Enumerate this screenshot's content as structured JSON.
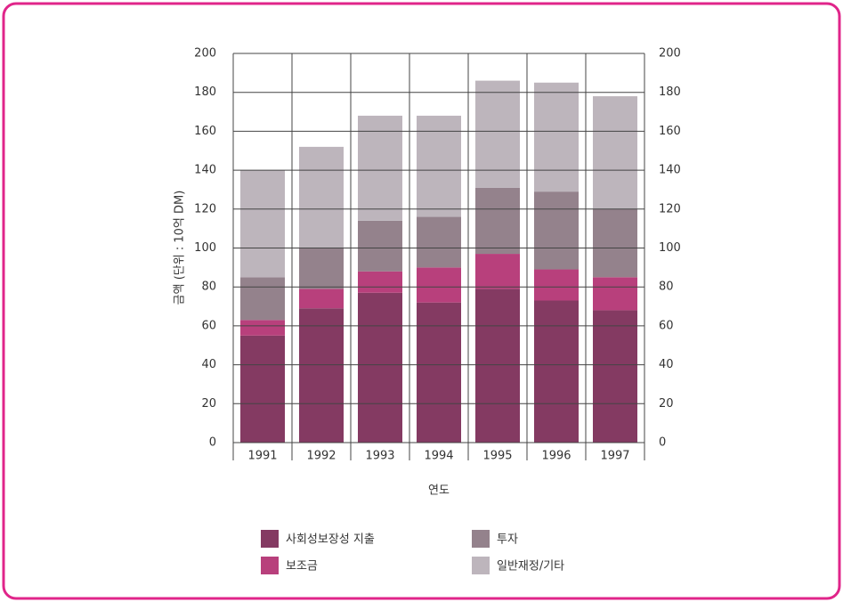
{
  "chart_data": {
    "type": "stacked_bar",
    "categories": [
      "1991",
      "1992",
      "1993",
      "1994",
      "1995",
      "1996",
      "1997"
    ],
    "series": [
      {
        "name": "사회성보장성 지출",
        "color": "#843a62",
        "values": [
          55,
          69,
          77,
          72,
          79,
          73,
          68
        ]
      },
      {
        "name": "보조금",
        "color": "#b8407c",
        "values": [
          8,
          10,
          11,
          18,
          18,
          16,
          17
        ]
      },
      {
        "name": "투자",
        "color": "#94828c",
        "values": [
          22,
          21,
          26,
          26,
          34,
          40,
          35
        ]
      },
      {
        "name": "일반재정/기타",
        "color": "#bdb5bc",
        "values": [
          55,
          52,
          54,
          52,
          55,
          56,
          58
        ]
      }
    ],
    "ylabel": "금액 (단위 : 10억 DM)",
    "xlabel": "연도",
    "ylim": [
      0,
      200
    ],
    "yticks": [
      0,
      20,
      40,
      60,
      80,
      100,
      120,
      140,
      160,
      180,
      200
    ],
    "y2lim": [
      0,
      200
    ],
    "y2ticks": [
      0,
      20,
      40,
      60,
      80,
      100,
      120,
      140,
      160,
      180,
      200
    ],
    "grid": true
  }
}
